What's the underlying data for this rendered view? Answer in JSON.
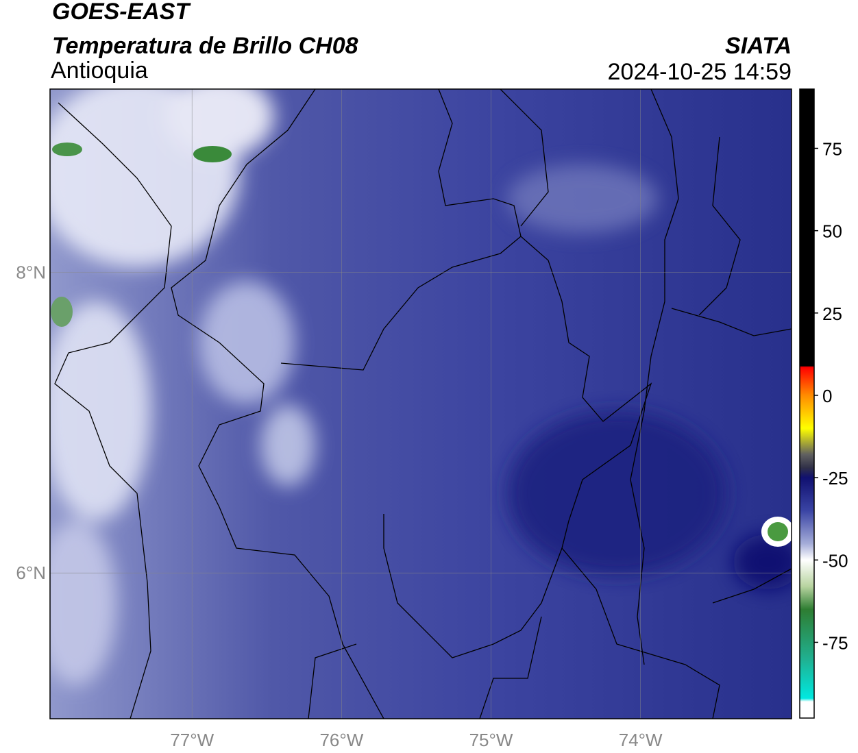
{
  "header": {
    "title": "GOES-EAST",
    "subtitle": "Temperatura de Brillo CH08",
    "region": "Antioquia",
    "source": "SIATA",
    "datetime": "2024-10-25 14:59"
  },
  "map": {
    "xlim": [
      -77.95,
      -72.99
    ],
    "ylim": [
      5.03,
      9.22
    ],
    "xticks": [
      {
        "value": -77,
        "label": "77°W"
      },
      {
        "value": -76,
        "label": "76°W"
      },
      {
        "value": -75,
        "label": "75°W"
      },
      {
        "value": -74,
        "label": "74°W"
      }
    ],
    "yticks": [
      {
        "value": 8,
        "label": "8°N"
      },
      {
        "value": 6,
        "label": "6°N"
      }
    ],
    "grid": true
  },
  "colorbar": {
    "clim": [
      -98,
      93
    ],
    "ticks": [
      75,
      50,
      25,
      0,
      -25,
      -50,
      -75
    ],
    "stops": [
      {
        "value": 93,
        "color": "#000000"
      },
      {
        "value": 9,
        "color": "#000000"
      },
      {
        "value": 8.5,
        "color": "#ff0000"
      },
      {
        "value": 0,
        "color": "#ff8c00"
      },
      {
        "value": -10,
        "color": "#ffff00"
      },
      {
        "value": -18,
        "color": "#606060"
      },
      {
        "value": -22,
        "color": "#303048"
      },
      {
        "value": -25,
        "color": "#101070"
      },
      {
        "value": -35,
        "color": "#3a44a4"
      },
      {
        "value": -45,
        "color": "#a4acd8"
      },
      {
        "value": -50,
        "color": "#ffffff"
      },
      {
        "value": -58,
        "color": "#b8d4a0"
      },
      {
        "value": -65,
        "color": "#2e7d32"
      },
      {
        "value": -80,
        "color": "#20b090"
      },
      {
        "value": -92,
        "color": "#00e8e0"
      },
      {
        "value": -93,
        "color": "#ffffff"
      },
      {
        "value": -98,
        "color": "#ffffff"
      }
    ]
  }
}
